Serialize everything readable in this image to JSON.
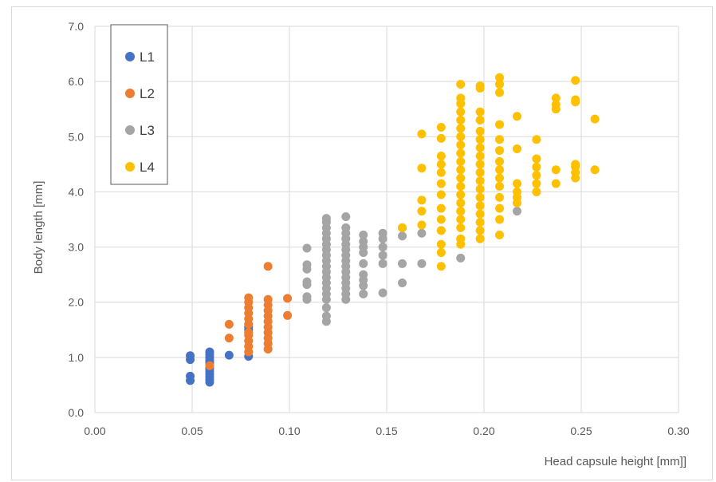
{
  "chart_data": {
    "type": "scatter",
    "title": "",
    "xlabel": "Head capsule height [mm]]",
    "ylabel": "Body length [mm]",
    "xlim": [
      0,
      0.3
    ],
    "ylim": [
      0,
      7
    ],
    "x_ticks": [
      "0.00",
      "0.05",
      "0.10",
      "0.15",
      "0.20",
      "0.25",
      "0.30"
    ],
    "y_ticks": [
      "0.0",
      "1.0",
      "2.0",
      "3.0",
      "4.0",
      "5.0",
      "6.0",
      "7.0"
    ],
    "grid": true,
    "legend_position": "top-left",
    "series": [
      {
        "name": "L1",
        "color": "#4472C4",
        "points": [
          [
            0.049,
            0.58
          ],
          [
            0.049,
            0.66
          ],
          [
            0.049,
            0.96
          ],
          [
            0.049,
            1.03
          ],
          [
            0.059,
            0.55
          ],
          [
            0.059,
            0.6
          ],
          [
            0.059,
            0.65
          ],
          [
            0.059,
            0.7
          ],
          [
            0.059,
            0.75
          ],
          [
            0.059,
            0.8
          ],
          [
            0.059,
            0.85
          ],
          [
            0.059,
            0.9
          ],
          [
            0.059,
            0.95
          ],
          [
            0.059,
            1.0
          ],
          [
            0.059,
            1.05
          ],
          [
            0.059,
            1.1
          ],
          [
            0.069,
            1.04
          ],
          [
            0.079,
            1.02
          ],
          [
            0.079,
            1.5
          ],
          [
            0.079,
            1.55
          ]
        ]
      },
      {
        "name": "L2",
        "color": "#ED7D31",
        "points": [
          [
            0.059,
            0.85
          ],
          [
            0.069,
            1.35
          ],
          [
            0.069,
            1.6
          ],
          [
            0.079,
            1.1
          ],
          [
            0.079,
            1.2
          ],
          [
            0.079,
            1.3
          ],
          [
            0.079,
            1.4
          ],
          [
            0.079,
            1.45
          ],
          [
            0.079,
            1.6
          ],
          [
            0.079,
            1.7
          ],
          [
            0.079,
            1.8
          ],
          [
            0.079,
            1.9
          ],
          [
            0.079,
            2.0
          ],
          [
            0.079,
            2.08
          ],
          [
            0.089,
            1.15
          ],
          [
            0.089,
            1.25
          ],
          [
            0.089,
            1.35
          ],
          [
            0.089,
            1.45
          ],
          [
            0.089,
            1.55
          ],
          [
            0.089,
            1.65
          ],
          [
            0.089,
            1.75
          ],
          [
            0.089,
            1.85
          ],
          [
            0.089,
            1.95
          ],
          [
            0.089,
            2.05
          ],
          [
            0.089,
            2.65
          ],
          [
            0.099,
            1.76
          ],
          [
            0.099,
            2.07
          ]
        ]
      },
      {
        "name": "L3",
        "color": "#A5A5A5",
        "points": [
          [
            0.109,
            2.05
          ],
          [
            0.109,
            2.1
          ],
          [
            0.109,
            2.32
          ],
          [
            0.109,
            2.37
          ],
          [
            0.109,
            2.6
          ],
          [
            0.109,
            2.68
          ],
          [
            0.109,
            2.98
          ],
          [
            0.119,
            1.65
          ],
          [
            0.119,
            1.75
          ],
          [
            0.119,
            1.9
          ],
          [
            0.119,
            2.05
          ],
          [
            0.119,
            2.15
          ],
          [
            0.119,
            2.25
          ],
          [
            0.119,
            2.35
          ],
          [
            0.119,
            2.45
          ],
          [
            0.119,
            2.55
          ],
          [
            0.119,
            2.65
          ],
          [
            0.119,
            2.75
          ],
          [
            0.119,
            2.85
          ],
          [
            0.119,
            2.95
          ],
          [
            0.119,
            3.05
          ],
          [
            0.119,
            3.15
          ],
          [
            0.119,
            3.25
          ],
          [
            0.119,
            3.35
          ],
          [
            0.119,
            3.45
          ],
          [
            0.119,
            3.52
          ],
          [
            0.129,
            2.05
          ],
          [
            0.129,
            2.15
          ],
          [
            0.129,
            2.25
          ],
          [
            0.129,
            2.35
          ],
          [
            0.129,
            2.45
          ],
          [
            0.129,
            2.55
          ],
          [
            0.129,
            2.65
          ],
          [
            0.129,
            2.75
          ],
          [
            0.129,
            2.85
          ],
          [
            0.129,
            2.95
          ],
          [
            0.129,
            3.05
          ],
          [
            0.129,
            3.15
          ],
          [
            0.129,
            3.25
          ],
          [
            0.129,
            3.35
          ],
          [
            0.129,
            3.55
          ],
          [
            0.138,
            2.15
          ],
          [
            0.138,
            2.3
          ],
          [
            0.138,
            2.4
          ],
          [
            0.138,
            2.5
          ],
          [
            0.138,
            2.7
          ],
          [
            0.138,
            2.9
          ],
          [
            0.138,
            3.0
          ],
          [
            0.138,
            3.1
          ],
          [
            0.138,
            3.22
          ],
          [
            0.148,
            2.17
          ],
          [
            0.148,
            2.7
          ],
          [
            0.148,
            2.85
          ],
          [
            0.148,
            3.0
          ],
          [
            0.148,
            3.15
          ],
          [
            0.148,
            3.25
          ],
          [
            0.158,
            2.35
          ],
          [
            0.158,
            2.7
          ],
          [
            0.158,
            3.2
          ],
          [
            0.158,
            3.35
          ],
          [
            0.168,
            2.7
          ],
          [
            0.168,
            3.25
          ],
          [
            0.178,
            3.3
          ],
          [
            0.188,
            2.8
          ],
          [
            0.217,
            3.65
          ]
        ]
      },
      {
        "name": "L4",
        "color": "#FFC000",
        "points": [
          [
            0.158,
            3.35
          ],
          [
            0.168,
            3.4
          ],
          [
            0.168,
            3.65
          ],
          [
            0.168,
            3.85
          ],
          [
            0.168,
            4.43
          ],
          [
            0.168,
            5.05
          ],
          [
            0.178,
            2.65
          ],
          [
            0.178,
            2.9
          ],
          [
            0.178,
            3.05
          ],
          [
            0.178,
            3.3
          ],
          [
            0.178,
            3.5
          ],
          [
            0.178,
            3.7
          ],
          [
            0.178,
            3.95
          ],
          [
            0.178,
            4.15
          ],
          [
            0.178,
            4.35
          ],
          [
            0.178,
            4.5
          ],
          [
            0.178,
            4.65
          ],
          [
            0.178,
            4.97
          ],
          [
            0.178,
            5.17
          ],
          [
            0.188,
            3.05
          ],
          [
            0.188,
            3.15
          ],
          [
            0.188,
            3.35
          ],
          [
            0.188,
            3.5
          ],
          [
            0.188,
            3.65
          ],
          [
            0.188,
            3.8
          ],
          [
            0.188,
            3.95
          ],
          [
            0.188,
            4.1
          ],
          [
            0.188,
            4.25
          ],
          [
            0.188,
            4.4
          ],
          [
            0.188,
            4.55
          ],
          [
            0.188,
            4.7
          ],
          [
            0.188,
            4.85
          ],
          [
            0.188,
            5.0
          ],
          [
            0.188,
            5.15
          ],
          [
            0.188,
            5.3
          ],
          [
            0.188,
            5.45
          ],
          [
            0.188,
            5.6
          ],
          [
            0.188,
            5.7
          ],
          [
            0.188,
            5.95
          ],
          [
            0.198,
            3.15
          ],
          [
            0.198,
            3.3
          ],
          [
            0.198,
            3.45
          ],
          [
            0.198,
            3.6
          ],
          [
            0.198,
            3.75
          ],
          [
            0.198,
            3.9
          ],
          [
            0.198,
            4.05
          ],
          [
            0.198,
            4.2
          ],
          [
            0.198,
            4.35
          ],
          [
            0.198,
            4.5
          ],
          [
            0.198,
            4.65
          ],
          [
            0.198,
            4.8
          ],
          [
            0.198,
            4.95
          ],
          [
            0.198,
            5.1
          ],
          [
            0.198,
            5.3
          ],
          [
            0.198,
            5.45
          ],
          [
            0.198,
            5.88
          ],
          [
            0.198,
            5.92
          ],
          [
            0.208,
            3.22
          ],
          [
            0.208,
            3.5
          ],
          [
            0.208,
            3.7
          ],
          [
            0.208,
            3.9
          ],
          [
            0.208,
            4.1
          ],
          [
            0.208,
            4.25
          ],
          [
            0.208,
            4.4
          ],
          [
            0.208,
            4.55
          ],
          [
            0.208,
            4.75
          ],
          [
            0.208,
            4.95
          ],
          [
            0.208,
            5.22
          ],
          [
            0.208,
            5.8
          ],
          [
            0.208,
            5.95
          ],
          [
            0.208,
            6.07
          ],
          [
            0.217,
            3.8
          ],
          [
            0.217,
            3.9
          ],
          [
            0.217,
            4.0
          ],
          [
            0.217,
            4.15
          ],
          [
            0.217,
            4.78
          ],
          [
            0.217,
            5.37
          ],
          [
            0.227,
            4.0
          ],
          [
            0.227,
            4.15
          ],
          [
            0.227,
            4.3
          ],
          [
            0.227,
            4.45
          ],
          [
            0.227,
            4.6
          ],
          [
            0.227,
            4.95
          ],
          [
            0.237,
            4.15
          ],
          [
            0.237,
            4.4
          ],
          [
            0.237,
            5.5
          ],
          [
            0.237,
            5.58
          ],
          [
            0.237,
            5.7
          ],
          [
            0.247,
            4.25
          ],
          [
            0.247,
            4.35
          ],
          [
            0.247,
            4.45
          ],
          [
            0.247,
            4.5
          ],
          [
            0.247,
            5.63
          ],
          [
            0.247,
            5.67
          ],
          [
            0.247,
            6.02
          ],
          [
            0.257,
            4.4
          ],
          [
            0.257,
            5.32
          ]
        ]
      }
    ]
  }
}
